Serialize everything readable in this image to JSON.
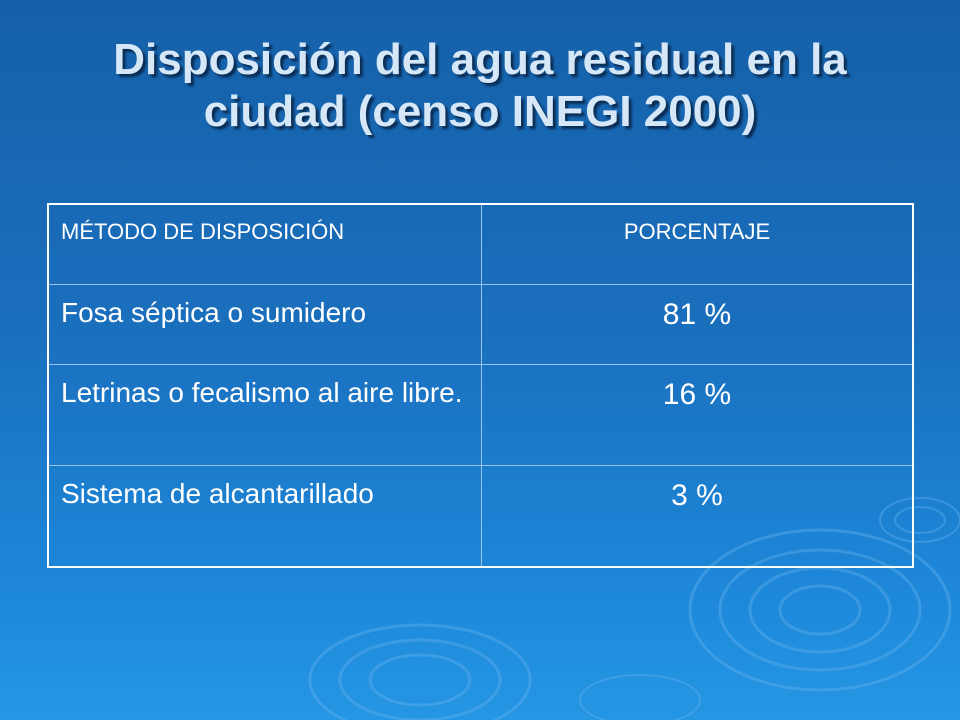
{
  "slide": {
    "title": "Disposición del agua residual en la ciudad (censo INEGI 2000)"
  },
  "table": {
    "headers": [
      "MÉTODO DE DISPOSICIÓN",
      "PORCENTAJE"
    ],
    "rows": [
      {
        "method": "Fosa séptica o sumidero",
        "percent": "81 %"
      },
      {
        "method": "Letrinas o fecalismo al aire libre.",
        "percent": "16 %"
      },
      {
        "method": "Sistema de alcantarillado",
        "percent": "3 %"
      }
    ]
  },
  "colors": {
    "background_top": "#1560a8",
    "background_bottom": "#2596e4",
    "title_text": "#d6e8f7",
    "table_border": "#ffffff",
    "cell_text": "#ffffff"
  }
}
